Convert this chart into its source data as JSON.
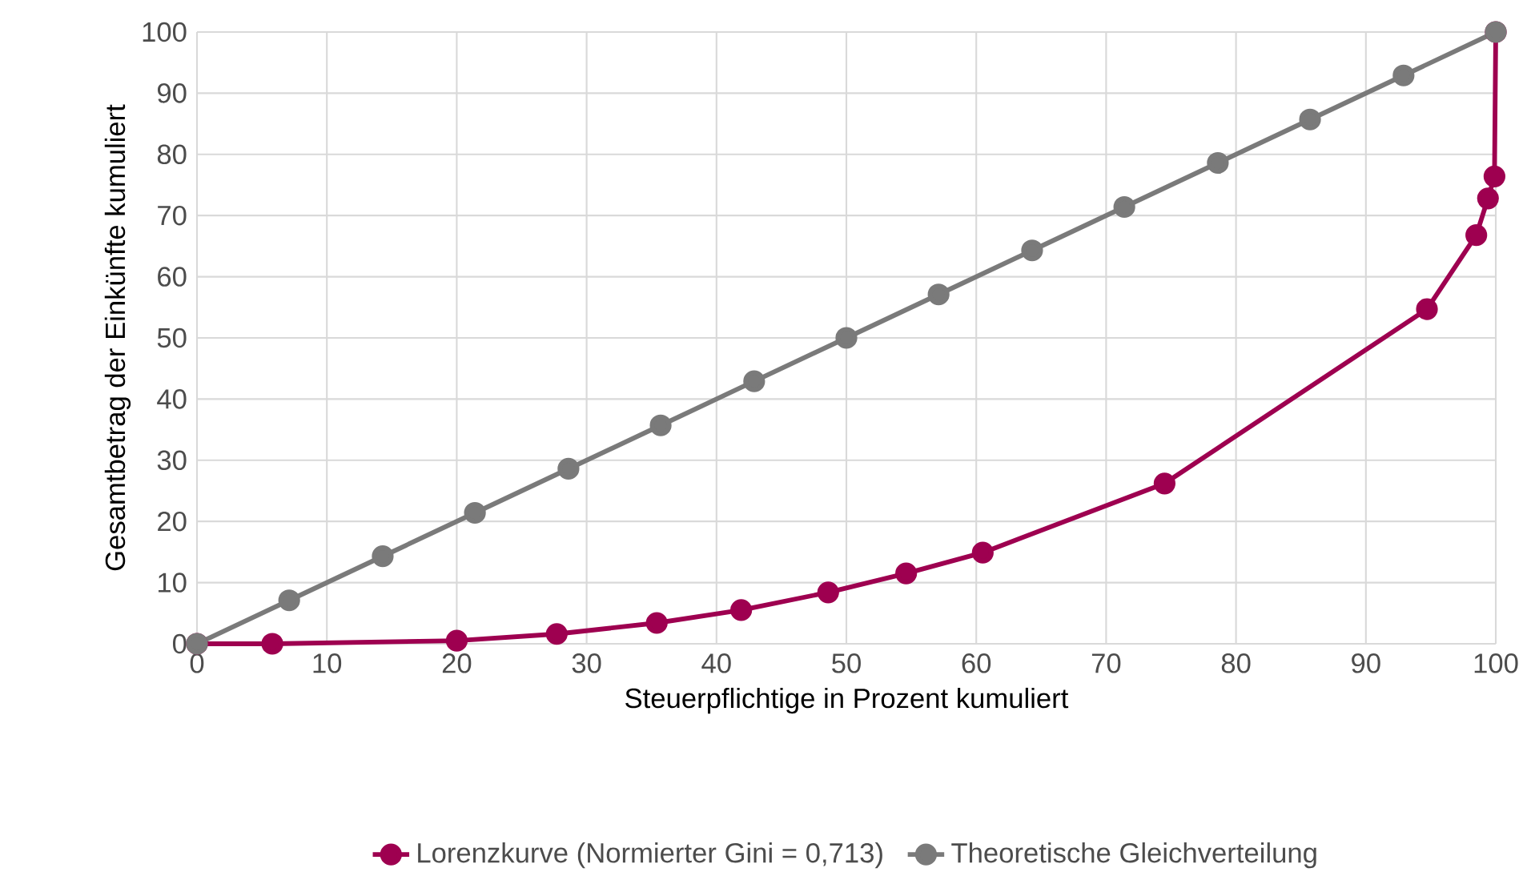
{
  "chart_data": {
    "type": "line",
    "xlabel": "Steuerpflichtige in Prozent kumuliert",
    "ylabel": "Gesamtbetrag der Einkünfte kumuliert",
    "xlim": [
      0,
      100
    ],
    "ylim": [
      0,
      100
    ],
    "xticks": [
      0,
      10,
      20,
      30,
      40,
      50,
      60,
      70,
      80,
      90,
      100
    ],
    "yticks": [
      0,
      10,
      20,
      30,
      40,
      50,
      60,
      70,
      80,
      90,
      100
    ],
    "grid": true,
    "legend": "bottom",
    "marker": "circle",
    "line_style": "solid",
    "series": [
      {
        "name": "Lorenzkurve (Normierter Gini = 0,713)",
        "color": "#9e0050",
        "x": [
          0,
          5.8,
          20,
          27.7,
          35.4,
          41.9,
          48.6,
          54.6,
          60.5,
          74.5,
          94.7,
          98.5,
          99.4,
          99.9,
          100
        ],
        "values": [
          0,
          0,
          0.5,
          1.6,
          3.4,
          5.5,
          8.4,
          11.5,
          14.9,
          26.2,
          54.7,
          66.8,
          72.8,
          76.4,
          100
        ]
      },
      {
        "name": "Theoretische Gleichverteilung",
        "color": "#7a7a7a",
        "x": [
          0,
          7.1,
          14.3,
          21.4,
          28.6,
          35.7,
          42.9,
          50,
          57.1,
          64.3,
          71.4,
          78.6,
          85.7,
          92.9,
          100
        ],
        "values": [
          0,
          7.1,
          14.3,
          21.4,
          28.6,
          35.7,
          42.9,
          50,
          57.1,
          64.3,
          71.4,
          78.6,
          85.7,
          92.9,
          100
        ]
      }
    ]
  }
}
